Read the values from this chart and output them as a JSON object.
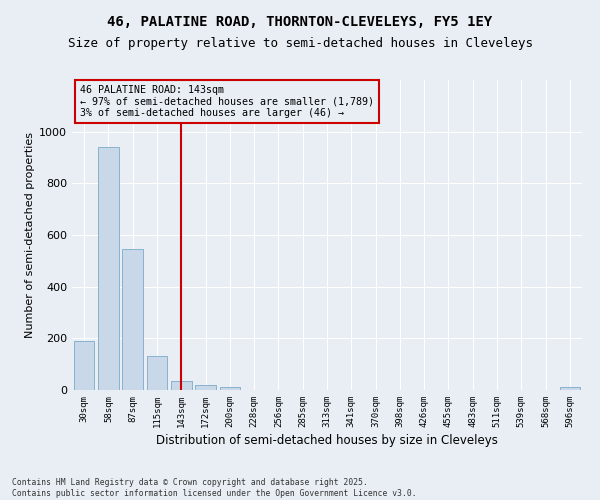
{
  "title_line1": "46, PALATINE ROAD, THORNTON-CLEVELEYS, FY5 1EY",
  "title_line2": "Size of property relative to semi-detached houses in Cleveleys",
  "xlabel": "Distribution of semi-detached houses by size in Cleveleys",
  "ylabel": "Number of semi-detached properties",
  "bar_color": "#c8d8e8",
  "bar_edge_color": "#7aaac8",
  "marker_color": "#cc0000",
  "marker_value_index": 4,
  "annotation_title": "46 PALATINE ROAD: 143sqm",
  "annotation_line2": "← 97% of semi-detached houses are smaller (1,789)",
  "annotation_line3": "3% of semi-detached houses are larger (46) →",
  "annotation_box_color": "#cc0000",
  "footer": "Contains HM Land Registry data © Crown copyright and database right 2025.\nContains public sector information licensed under the Open Government Licence v3.0.",
  "categories": [
    "30sqm",
    "58sqm",
    "87sqm",
    "115sqm",
    "143sqm",
    "172sqm",
    "200sqm",
    "228sqm",
    "256sqm",
    "285sqm",
    "313sqm",
    "341sqm",
    "370sqm",
    "398sqm",
    "426sqm",
    "455sqm",
    "483sqm",
    "511sqm",
    "539sqm",
    "568sqm",
    "596sqm"
  ],
  "values": [
    190,
    940,
    545,
    130,
    35,
    20,
    10,
    0,
    0,
    0,
    0,
    0,
    0,
    0,
    0,
    0,
    0,
    0,
    0,
    0,
    13
  ],
  "ylim": [
    0,
    1200
  ],
  "yticks": [
    0,
    200,
    400,
    600,
    800,
    1000
  ],
  "background_color": "#e8eef4",
  "grid_color": "#ffffff",
  "title_fontsize": 10,
  "subtitle_fontsize": 9
}
